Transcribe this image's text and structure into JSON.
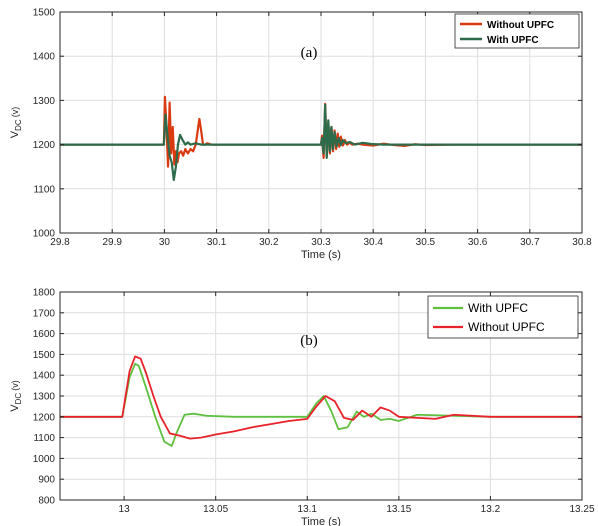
{
  "chart_data": [
    {
      "type": "line",
      "panel_label": "(a)",
      "xlabel": "Time (s)",
      "ylabel": "V",
      "ylabel_sub": "DC",
      "ylabel_unit": "(v)",
      "xlim": [
        29.8,
        30.8
      ],
      "ylim": [
        1000,
        1500
      ],
      "xticks": [
        29.8,
        29.9,
        30,
        30.1,
        30.2,
        30.3,
        30.4,
        30.5,
        30.6,
        30.7,
        30.8
      ],
      "xtick_labels": [
        "29.8",
        "29.9",
        "30",
        "30.1",
        "30.2",
        "30.3",
        "30.4",
        "30.5",
        "30.6",
        "30.7",
        "30.8"
      ],
      "yticks": [
        1000,
        1100,
        1200,
        1300,
        1400,
        1500
      ],
      "ytick_labels": [
        "1000",
        "1100",
        "1200",
        "1300",
        "1400",
        "1500"
      ],
      "grid": true,
      "legend_position": "top-right",
      "series": [
        {
          "name": "Without UPFC",
          "color": "#d93a10",
          "x": [
            29.8,
            29.999,
            30.001,
            30.004,
            30.007,
            30.01,
            30.013,
            30.016,
            30.019,
            30.022,
            30.025,
            30.028,
            30.032,
            30.036,
            30.04,
            30.045,
            30.05,
            30.055,
            30.06,
            30.063,
            30.067,
            30.07,
            30.074,
            30.078,
            30.082,
            30.09,
            30.1,
            30.3,
            30.302,
            30.305,
            30.308,
            30.311,
            30.314,
            30.317,
            30.32,
            30.323,
            30.326,
            30.329,
            30.332,
            30.335,
            30.338,
            30.342,
            30.346,
            30.35,
            30.355,
            30.36,
            30.37,
            30.38,
            30.4,
            30.42,
            30.44,
            30.46,
            30.48,
            30.5,
            30.55,
            30.8
          ],
          "y": [
            1200,
            1200,
            1308,
            1240,
            1150,
            1295,
            1180,
            1240,
            1155,
            1185,
            1160,
            1180,
            1185,
            1175,
            1190,
            1180,
            1190,
            1185,
            1200,
            1225,
            1258,
            1235,
            1200,
            1200,
            1203,
            1200,
            1200,
            1200,
            1220,
            1170,
            1292,
            1175,
            1250,
            1180,
            1240,
            1185,
            1232,
            1190,
            1225,
            1195,
            1218,
            1198,
            1210,
            1200,
            1205,
            1200,
            1202,
            1200,
            1198,
            1202,
            1199,
            1197,
            1201,
            1199,
            1200,
            1200
          ]
        },
        {
          "name": "With UPFC",
          "color": "#2e6b4a",
          "x": [
            29.8,
            29.999,
            30.002,
            30.006,
            30.01,
            30.014,
            30.018,
            30.022,
            30.026,
            30.03,
            30.035,
            30.04,
            30.045,
            30.05,
            30.06,
            30.07,
            30.08,
            30.3,
            30.302,
            30.305,
            30.308,
            30.311,
            30.314,
            30.317,
            30.32,
            30.323,
            30.326,
            30.33,
            30.334,
            30.338,
            30.342,
            30.348,
            30.355,
            30.365,
            30.38,
            30.4,
            30.42,
            30.45,
            30.8
          ],
          "y": [
            1200,
            1200,
            1268,
            1220,
            1175,
            1160,
            1120,
            1150,
            1200,
            1222,
            1210,
            1200,
            1205,
            1200,
            1203,
            1200,
            1200,
            1200,
            1215,
            1180,
            1290,
            1170,
            1255,
            1185,
            1240,
            1190,
            1228,
            1196,
            1215,
            1199,
            1210,
            1203,
            1206,
            1200,
            1204,
            1201,
            1200,
            1200,
            1200
          ]
        }
      ]
    },
    {
      "type": "line",
      "panel_label": "(b)",
      "xlabel": "Time (s)",
      "ylabel": "V",
      "ylabel_sub": "DC",
      "ylabel_unit": "(v)",
      "xlim": [
        12.965,
        13.25
      ],
      "ylim": [
        800,
        1800
      ],
      "xticks": [
        13,
        13.05,
        13.1,
        13.15,
        13.2,
        13.25
      ],
      "xtick_labels": [
        "13",
        "13.05",
        "13.1",
        "13.15",
        "13.2",
        "13.25"
      ],
      "yticks": [
        800,
        900,
        1000,
        1100,
        1200,
        1300,
        1400,
        1500,
        1600,
        1700,
        1800
      ],
      "ytick_labels": [
        "800",
        "900",
        "1000",
        "1100",
        "1200",
        "1300",
        "1400",
        "1500",
        "1600",
        "1700",
        "1800"
      ],
      "grid": true,
      "legend_position": "top-right",
      "series": [
        {
          "name": "With UPFC",
          "color": "#5fbf3f",
          "x": [
            12.965,
            12.999,
            13.003,
            13.006,
            13.008,
            13.012,
            13.017,
            13.022,
            13.026,
            13.029,
            13.033,
            13.038,
            13.045,
            13.06,
            13.08,
            13.1,
            13.105,
            13.109,
            13.113,
            13.117,
            13.122,
            13.127,
            13.131,
            13.135,
            13.14,
            13.145,
            13.15,
            13.16,
            13.18,
            13.2,
            13.25
          ],
          "y": [
            1200,
            1200,
            1390,
            1455,
            1445,
            1340,
            1200,
            1080,
            1060,
            1130,
            1210,
            1215,
            1205,
            1200,
            1200,
            1200,
            1265,
            1300,
            1230,
            1140,
            1150,
            1225,
            1200,
            1215,
            1185,
            1190,
            1180,
            1210,
            1205,
            1200,
            1200
          ]
        },
        {
          "name": "Without UPFC",
          "color": "#e8222a",
          "x": [
            12.965,
            12.999,
            13.003,
            13.006,
            13.009,
            13.012,
            13.016,
            13.02,
            13.025,
            13.03,
            13.036,
            13.042,
            13.05,
            13.06,
            13.07,
            13.08,
            13.09,
            13.1,
            13.105,
            13.11,
            13.115,
            13.12,
            13.125,
            13.13,
            13.135,
            13.14,
            13.145,
            13.15,
            13.16,
            13.17,
            13.18,
            13.2,
            13.25
          ],
          "y": [
            1200,
            1200,
            1420,
            1490,
            1480,
            1410,
            1300,
            1200,
            1120,
            1110,
            1095,
            1100,
            1115,
            1130,
            1150,
            1165,
            1180,
            1190,
            1250,
            1300,
            1275,
            1195,
            1185,
            1230,
            1200,
            1245,
            1230,
            1200,
            1195,
            1190,
            1210,
            1200,
            1200
          ]
        }
      ]
    }
  ]
}
